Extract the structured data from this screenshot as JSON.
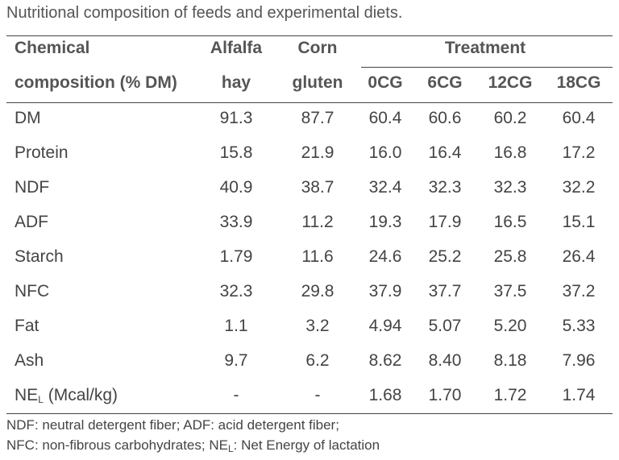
{
  "caption": "Nutritional composition of feeds and experimental diets.",
  "header": {
    "chem_line1": "Chemical",
    "chem_line2": "composition (% DM)",
    "alfalfa_line1": "Alfalfa",
    "alfalfa_line2": "hay",
    "corn_line1": "Corn",
    "corn_line2": "gluten",
    "treatment": "Treatment",
    "treatments": [
      "0CG",
      "6CG",
      "12CG",
      "18CG"
    ]
  },
  "rows": [
    {
      "label": "DM",
      "values": [
        "91.3",
        "87.7",
        "60.4",
        "60.6",
        "60.2",
        "60.4"
      ]
    },
    {
      "label": "Protein",
      "values": [
        "15.8",
        "21.9",
        "16.0",
        "16.4",
        "16.8",
        "17.2"
      ]
    },
    {
      "label": "NDF",
      "values": [
        "40.9",
        "38.7",
        "32.4",
        "32.3",
        "32.3",
        "32.2"
      ]
    },
    {
      "label": "ADF",
      "values": [
        "33.9",
        "11.2",
        "19.3",
        "17.9",
        "16.5",
        "15.1"
      ]
    },
    {
      "label": "Starch",
      "values": [
        "1.79",
        "11.6",
        "24.6",
        "25.2",
        "25.8",
        "26.4"
      ]
    },
    {
      "label": "NFC",
      "values": [
        "32.3",
        "29.8",
        "37.9",
        "37.7",
        "37.5",
        "37.2"
      ]
    },
    {
      "label": "Fat",
      "values": [
        "1.1",
        "3.2",
        "4.94",
        "5.07",
        "5.20",
        "5.33"
      ]
    },
    {
      "label": "Ash",
      "values": [
        "9.7",
        "6.2",
        "8.62",
        "8.40",
        "8.18",
        "7.96"
      ]
    },
    {
      "label_main": "NE",
      "label_sub": "L",
      "label_rest": " (Mcal/kg)",
      "values": [
        "-",
        "-",
        "1.68",
        "1.70",
        "1.72",
        "1.74"
      ]
    }
  ],
  "notes": {
    "line1": "NDF: neutral detergent fiber; ADF: acid detergent fiber;",
    "line2_a": "NFC: non-fibrous carbohydrates; NE",
    "line2_sub": "L",
    "line2_b": ": Net Energy of lactation"
  }
}
